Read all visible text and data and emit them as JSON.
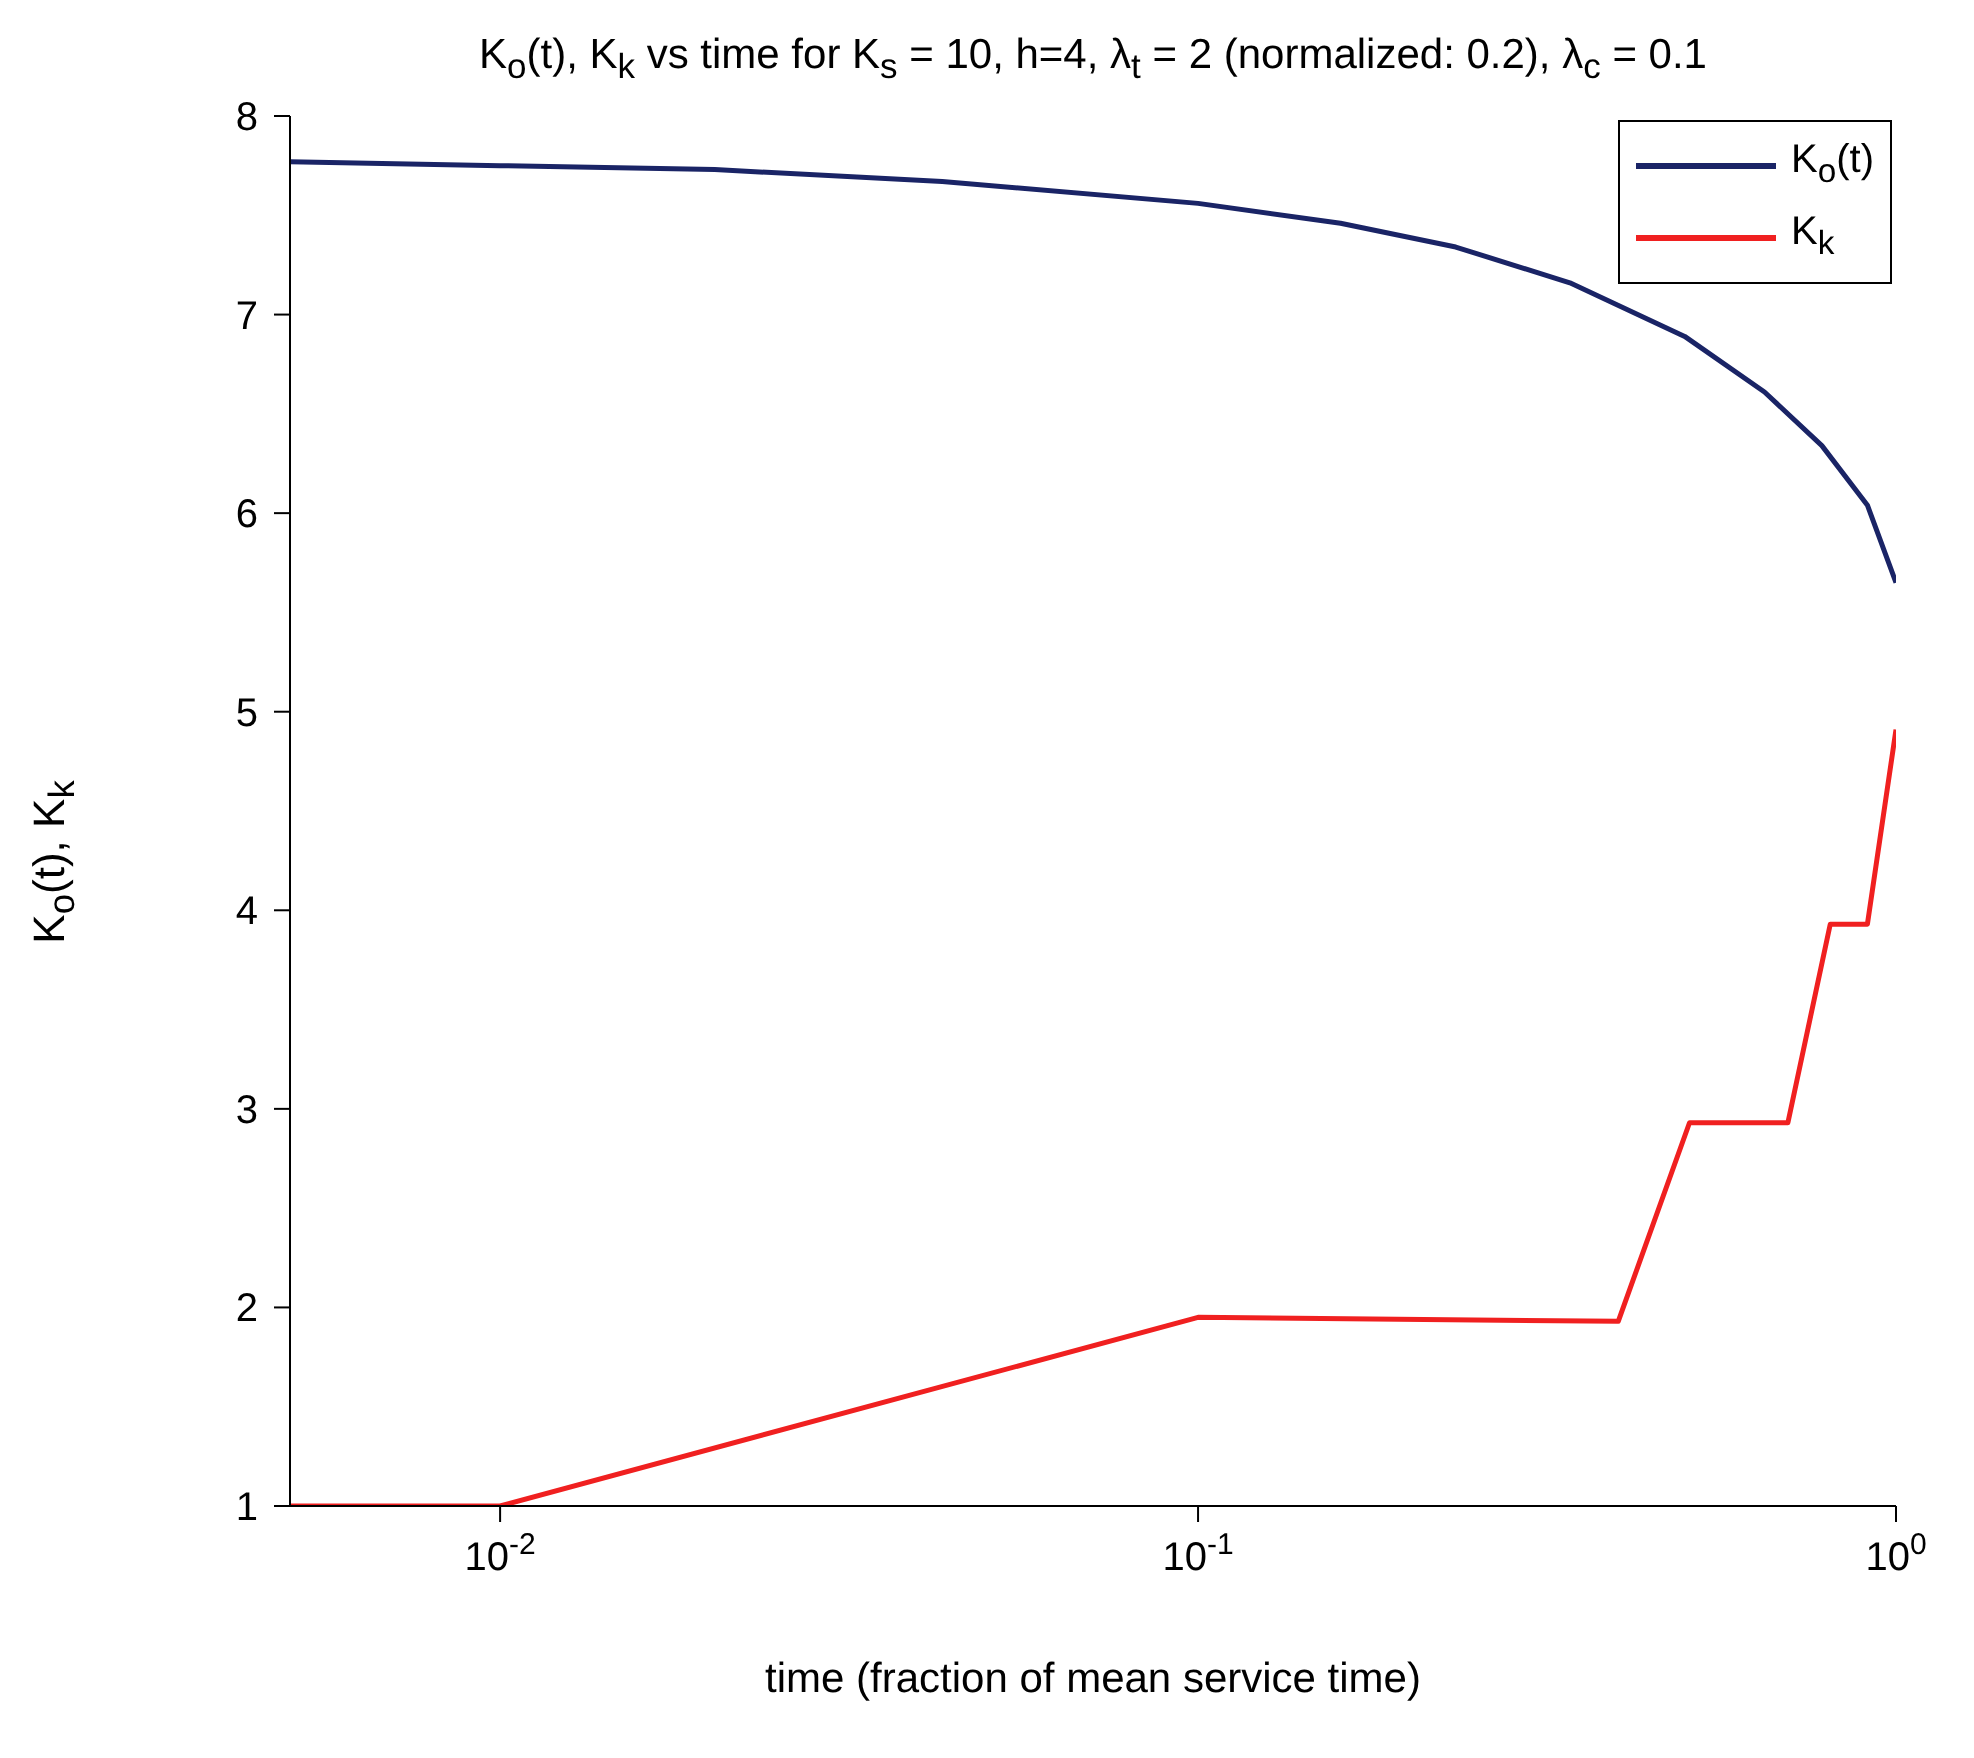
{
  "chart_data": {
    "type": "line",
    "title": "K$_{o}$(t), K$_{k}$ vs time for K$_{s}$ = 10, h=4, λ$_{t}$ = 2 (normalized: 0.2), λ$_{c}$ = 0.1",
    "xlabel": "time (fraction of mean service time)",
    "ylabel": "K$_{o}$(t), K$_{k}$",
    "log": "x",
    "xlim": [
      0.005,
      1
    ],
    "xticks": [
      {
        "value": 0.01,
        "label": "10$^{-2}$"
      },
      {
        "value": 0.1,
        "label": "10$^{-1}$"
      },
      {
        "value": 1,
        "label": "10$^{0}$"
      }
    ],
    "ylim": [
      1,
      8
    ],
    "yticks": [
      1,
      2,
      3,
      4,
      5,
      6,
      7,
      8
    ],
    "grid": false,
    "legend": "top right",
    "marker": "none",
    "line_style": "solid",
    "series": [
      {
        "name": "K$_{o}$(t)",
        "color": "#1a2466",
        "x": [
          0.005,
          0.01,
          0.0203,
          0.043,
          0.1,
          0.16,
          0.234,
          0.341,
          0.498,
          0.648,
          0.783,
          0.91,
          1
        ],
        "values": [
          7.77,
          7.75,
          7.73,
          7.67,
          7.56,
          7.46,
          7.34,
          7.16,
          6.89,
          6.61,
          6.34,
          6.04,
          5.65
        ]
      },
      {
        "name": "K$_{k}$",
        "color": "#f02020",
        "x": [
          0.005,
          0.01,
          0.1,
          0.4,
          0.506,
          0.7,
          0.805,
          0.91,
          1
        ],
        "values": [
          1,
          1,
          1.95,
          1.93,
          2.93,
          2.93,
          3.93,
          3.93,
          4.91
        ]
      }
    ]
  }
}
